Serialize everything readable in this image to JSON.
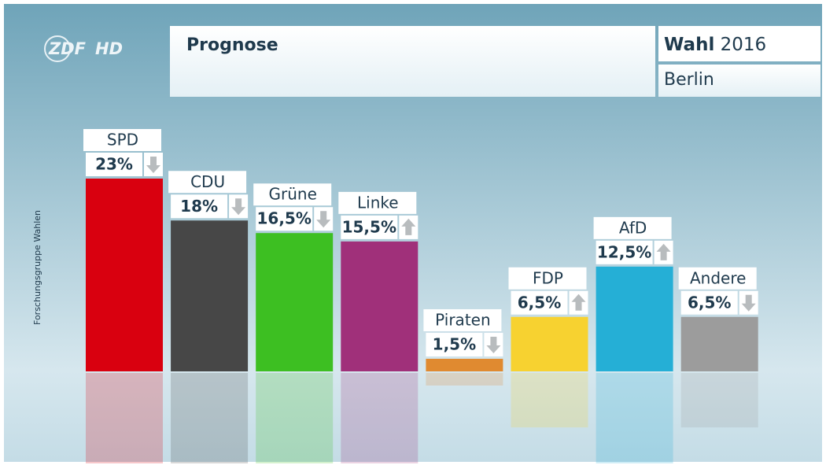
{
  "logo": {
    "brand": "ZDF",
    "suffix": "HD"
  },
  "header": {
    "title": "Prognose",
    "election": "Wahl",
    "year": "2016",
    "region": "Berlin"
  },
  "source": "Forschungsgruppe Wahlen",
  "chart_data": {
    "type": "bar",
    "categories": [
      "SPD",
      "CDU",
      "Grüne",
      "Linke",
      "Piraten",
      "FDP",
      "AfD",
      "Andere"
    ],
    "values": [
      23,
      18,
      16.5,
      15.5,
      1.5,
      6.5,
      12.5,
      6.5
    ],
    "value_labels": [
      "23%",
      "18%",
      "16,5%",
      "15,5%",
      "1,5%",
      "6,5%",
      "12,5%",
      "6,5%"
    ],
    "trend": [
      "down",
      "down",
      "down",
      "up",
      "down",
      "up",
      "up",
      "down"
    ],
    "colors": [
      "#d9000f",
      "#474747",
      "#3dbf22",
      "#a0307a",
      "#e08a30",
      "#f7d230",
      "#25afd6",
      "#9c9c9c"
    ]
  }
}
